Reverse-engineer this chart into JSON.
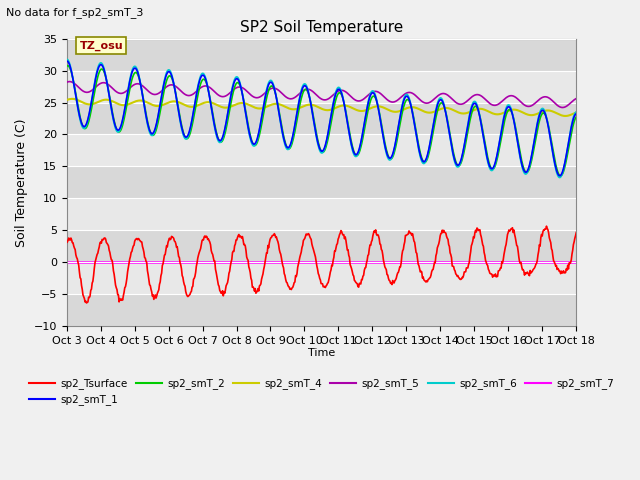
{
  "title": "SP2 Soil Temperature",
  "subtitle": "No data for f_sp2_smT_3",
  "ylabel": "Soil Temperature (C)",
  "xlabel": "Time",
  "tz_label": "TZ_osu",
  "ylim": [
    -10,
    35
  ],
  "x_ticks": [
    0,
    1,
    2,
    3,
    4,
    5,
    6,
    7,
    8,
    9,
    10,
    11,
    12,
    13,
    14,
    15
  ],
  "x_tick_labels": [
    "Oct 3",
    "Oct 4",
    "Oct 5",
    "Oct 6",
    "Oct 7",
    "Oct 8",
    "Oct 9",
    "Oct 10",
    "Oct 11",
    "Oct 12",
    "Oct 13",
    "Oct 14",
    "Oct 15",
    "Oct 16",
    "Oct 17",
    "Oct 18"
  ],
  "yticks": [
    -10,
    -5,
    0,
    5,
    10,
    15,
    20,
    25,
    30,
    35
  ],
  "series_colors": {
    "sp2_Tsurface": "#ff0000",
    "sp2_smT_1": "#0000ff",
    "sp2_smT_2": "#00cc00",
    "sp2_smT_4": "#cccc00",
    "sp2_smT_5": "#aa00aa",
    "sp2_smT_6": "#00cccc",
    "sp2_smT_7": "#ff00ff"
  },
  "fig_bg": "#f0f0f0",
  "plot_bg": "#dcdcdc",
  "figsize": [
    6.4,
    4.8
  ],
  "dpi": 100
}
